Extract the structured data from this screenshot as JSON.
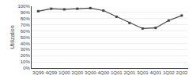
{
  "chart_data": {
    "type": "line",
    "categories": [
      "3Q99",
      "4Q99",
      "1Q00",
      "2Q00",
      "3Q00",
      "4Q00",
      "1Q01",
      "2Q01",
      "3Q01",
      "4Q01",
      "1Q02",
      "2Q02"
    ],
    "values": [
      92,
      96,
      95,
      96,
      97,
      93,
      83,
      73,
      64,
      65,
      77,
      85
    ],
    "color": "#444444",
    "marker": "square",
    "line_style": "solid",
    "ylabel": "Utilization",
    "ylim": [
      0,
      100
    ],
    "yticks": [
      {
        "value": 0,
        "label": "0%"
      },
      {
        "value": 10,
        "label": "10%"
      },
      {
        "value": 20,
        "label": "20%"
      },
      {
        "value": 30,
        "label": "30%"
      },
      {
        "value": 40,
        "label": "40%"
      },
      {
        "value": 50,
        "label": "50%"
      },
      {
        "value": 60,
        "label": "60%"
      },
      {
        "value": 70,
        "label": "70%"
      },
      {
        "value": 80,
        "label": "80%"
      },
      {
        "value": 90,
        "label": "90%"
      },
      {
        "value": 100,
        "label": "100%"
      }
    ],
    "grid": true
  }
}
